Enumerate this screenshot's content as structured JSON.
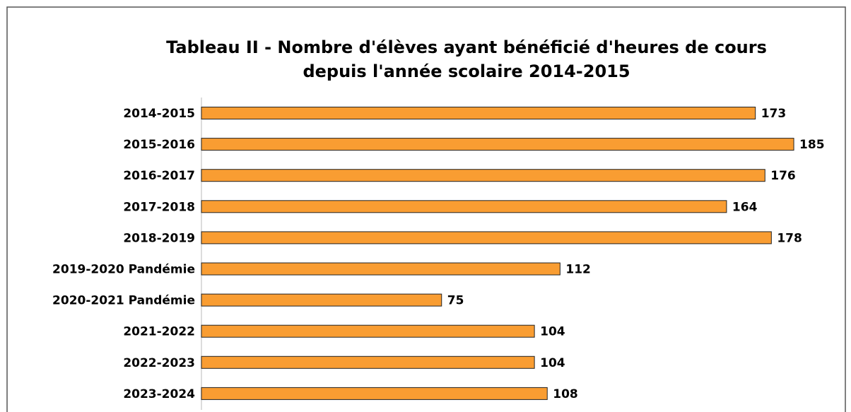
{
  "chart_data": {
    "type": "barh",
    "title": [
      "Tableau II -  Nombre d'élèves ayant bénéficié d'heures de cours",
      "depuis l'année scolaire 2014-2015"
    ],
    "categories": [
      "2014-2015",
      "2015-2016",
      "2016-2017",
      "2017-2018",
      "2018-2019",
      "2019-2020 Pandémie",
      "2020-2021 Pandémie",
      "2021-2022",
      "2022-2023",
      "2023-2024"
    ],
    "values": [
      173,
      185,
      176,
      164,
      178,
      112,
      75,
      104,
      104,
      108
    ],
    "color": "#f99d32"
  }
}
